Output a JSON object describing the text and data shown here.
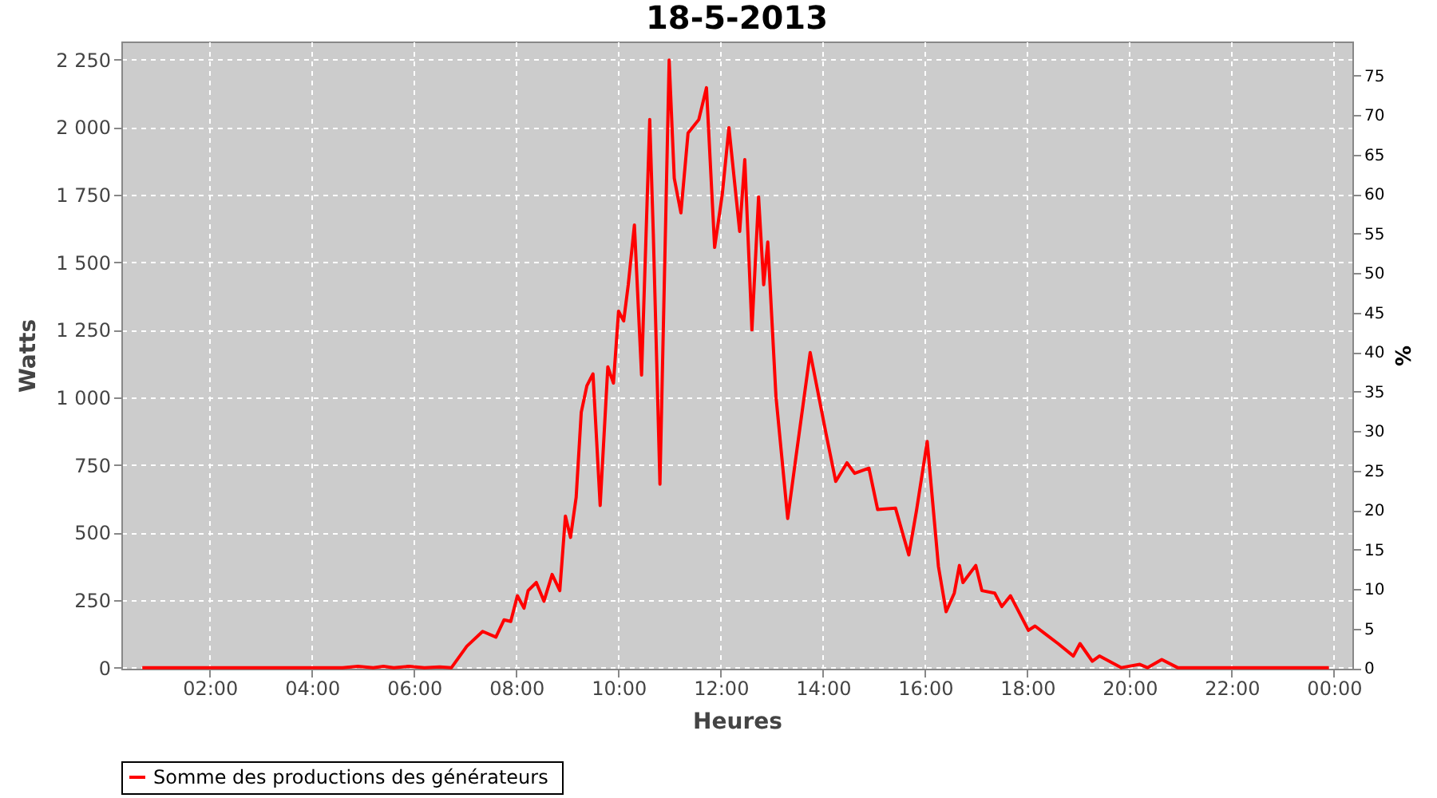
{
  "chart_data": {
    "type": "line",
    "title": "18-5-2013",
    "xlabel": "Heures",
    "ylabel": "Watts",
    "y2label": "%",
    "xlim": [
      0.27,
      24.36
    ],
    "xticks": [
      {
        "value": 2,
        "label": "02:00"
      },
      {
        "value": 4,
        "label": "04:00"
      },
      {
        "value": 6,
        "label": "06:00"
      },
      {
        "value": 8,
        "label": "08:00"
      },
      {
        "value": 10,
        "label": "10:00"
      },
      {
        "value": 12,
        "label": "12:00"
      },
      {
        "value": 14,
        "label": "14:00"
      },
      {
        "value": 16,
        "label": "16:00"
      },
      {
        "value": 18,
        "label": "18:00"
      },
      {
        "value": 20,
        "label": "20:00"
      },
      {
        "value": 22,
        "label": "22:00"
      },
      {
        "value": 24,
        "label": "00:00"
      }
    ],
    "ylim": [
      -4,
      2317
    ],
    "yticks": [
      0,
      250,
      500,
      750,
      {
        "value": 1000,
        "label": "1 000"
      },
      {
        "value": 1250,
        "label": "1 250"
      },
      {
        "value": 1500,
        "label": "1 500"
      },
      {
        "value": 1750,
        "label": "1 750"
      },
      {
        "value": 2000,
        "label": "2 000"
      },
      {
        "value": 2250,
        "label": "2 250"
      }
    ],
    "y2lim": [
      -0.1,
      79.3
    ],
    "y2ticks": [
      0,
      5,
      10,
      15,
      20,
      25,
      30,
      35,
      40,
      45,
      50,
      55,
      60,
      65,
      70,
      75
    ],
    "grid": true,
    "legend": "bottom",
    "marker": "none",
    "line_style": "solid",
    "series": [
      {
        "name": "Somme des productions des  générateurs",
        "color": "#ff0000",
        "x": [
          0.68,
          2.0,
          3.5,
          4.6,
          4.9,
          5.2,
          5.4,
          5.6,
          5.9,
          6.2,
          6.5,
          6.73,
          7.03,
          7.34,
          7.6,
          7.76,
          7.89,
          8.02,
          8.15,
          8.23,
          8.39,
          8.54,
          8.7,
          8.85,
          8.96,
          9.06,
          9.17,
          9.27,
          9.38,
          9.5,
          9.64,
          9.79,
          9.9,
          10.0,
          10.1,
          10.19,
          10.31,
          10.45,
          10.61,
          10.68,
          10.81,
          10.99,
          11.09,
          11.22,
          11.36,
          11.57,
          11.72,
          11.88,
          12.03,
          12.16,
          12.37,
          12.47,
          12.61,
          12.74,
          12.84,
          12.92,
          13.08,
          13.31,
          13.47,
          13.75,
          14.06,
          14.25,
          14.47,
          14.62,
          14.9,
          15.07,
          15.42,
          15.68,
          15.83,
          16.04,
          16.26,
          16.41,
          16.57,
          16.67,
          16.74,
          16.99,
          17.11,
          17.36,
          17.5,
          17.67,
          18.02,
          18.15,
          18.33,
          18.6,
          18.9,
          19.03,
          19.27,
          19.41,
          19.84,
          20.2,
          20.35,
          20.63,
          20.94,
          22.0,
          23.9
        ],
        "values": [
          0,
          0,
          0,
          0,
          5,
          0,
          5,
          0,
          5,
          0,
          3,
          0,
          79,
          134,
          113,
          177,
          171,
          266,
          220,
          285,
          315,
          246,
          345,
          285,
          561,
          482,
          630,
          945,
          1043,
          1087,
          600,
          1113,
          1053,
          1319,
          1283,
          1417,
          1638,
          1083,
          2028,
          1606,
          679,
          2248,
          1811,
          1683,
          1978,
          2028,
          2146,
          1555,
          1752,
          1998,
          1614,
          1880,
          1250,
          1742,
          1417,
          1575,
          1004,
          552,
          778,
          1166,
          866,
          689,
          758,
          719,
          738,
          585,
          590,
          417,
          581,
          837,
          374,
          207,
          276,
          378,
          315,
          378,
          285,
          276,
          226,
          266,
          138,
          154,
          128,
          89,
          43,
          89,
          24,
          43,
          0,
          12,
          0,
          30,
          0,
          0,
          0
        ]
      }
    ]
  }
}
